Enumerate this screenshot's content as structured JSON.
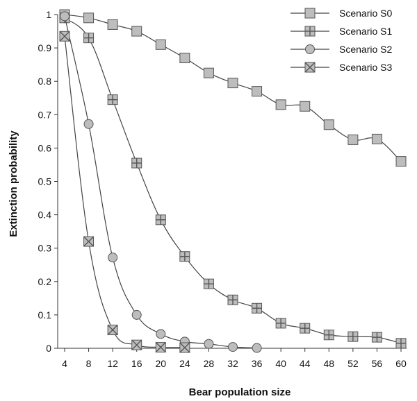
{
  "chart_data": {
    "type": "line",
    "xlabel": "Bear population size",
    "ylabel": "Extinction probability",
    "x_ticks": [
      "4",
      "8",
      "12",
      "16",
      "20",
      "24",
      "28",
      "32",
      "36",
      "40",
      "44",
      "48",
      "52",
      "56",
      "60"
    ],
    "y_ticks": [
      "0",
      "0.1",
      "0.2",
      "0.3",
      "0.4",
      "0.5",
      "0.6",
      "0.7",
      "0.8",
      "0.9",
      "1"
    ],
    "xlim": [
      4,
      60
    ],
    "ylim": [
      0,
      1
    ],
    "grid": false,
    "legend_position": "top-right",
    "series": [
      {
        "name": "Scenario S0",
        "marker": "square",
        "x": [
          4,
          8,
          12,
          16,
          20,
          24,
          28,
          32,
          36,
          40,
          44,
          48,
          52,
          56,
          60
        ],
        "y": [
          1.0,
          0.99,
          0.97,
          0.95,
          0.91,
          0.87,
          0.825,
          0.795,
          0.77,
          0.73,
          0.725,
          0.67,
          0.625,
          0.627,
          0.56
        ]
      },
      {
        "name": "Scenario S1",
        "marker": "plus-square",
        "x": [
          4,
          8,
          12,
          16,
          20,
          24,
          28,
          32,
          36,
          40,
          44,
          48,
          52,
          56,
          60
        ],
        "y": [
          0.99,
          0.93,
          0.745,
          0.555,
          0.385,
          0.275,
          0.193,
          0.145,
          0.12,
          0.075,
          0.06,
          0.04,
          0.035,
          0.033,
          0.015
        ]
      },
      {
        "name": "Scenario S2",
        "marker": "circle",
        "x": [
          4,
          8,
          12,
          16,
          20,
          24,
          28,
          32,
          36
        ],
        "y": [
          0.995,
          0.672,
          0.272,
          0.1,
          0.043,
          0.02,
          0.013,
          0.004,
          0.001
        ]
      },
      {
        "name": "Scenario S3",
        "marker": "x-square",
        "x": [
          4,
          8,
          12,
          16,
          20,
          24
        ],
        "y": [
          0.935,
          0.32,
          0.055,
          0.01,
          0.003,
          0.002
        ]
      }
    ]
  }
}
